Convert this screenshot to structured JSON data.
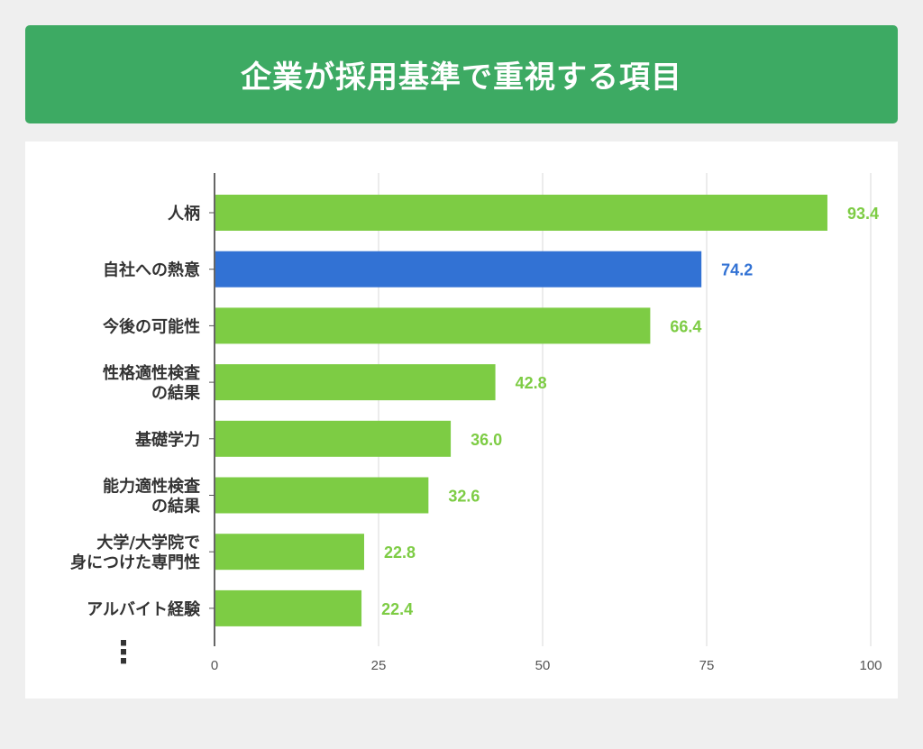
{
  "header": {
    "title": "企業が採用基準で重視する項目"
  },
  "colors": {
    "header_bg": "#3daa63",
    "bar_default": "#7dcc44",
    "bar_highlight": "#3272d4",
    "value_default": "#7dcc44",
    "value_highlight": "#3272d4"
  },
  "chart_data": {
    "type": "bar",
    "orientation": "horizontal",
    "title": "企業が採用基準で重視する項目",
    "categories": [
      [
        "人柄"
      ],
      [
        "自社への熱意"
      ],
      [
        "今後の可能性"
      ],
      [
        "性格適性検査",
        "の結果"
      ],
      [
        "基礎学力"
      ],
      [
        "能力適性検査",
        "の結果"
      ],
      [
        "大学/大学院で",
        "身につけた専門性"
      ],
      [
        "アルバイト経験"
      ]
    ],
    "values": [
      93.4,
      74.2,
      66.4,
      42.8,
      36.0,
      32.6,
      22.8,
      22.4
    ],
    "value_labels": [
      "93.4",
      "74.2",
      "66.4",
      "42.8",
      "36.0",
      "32.6",
      "22.8",
      "22.4"
    ],
    "highlight_index": 1,
    "xlim": [
      0,
      100
    ],
    "xticks": [
      0,
      25,
      50,
      75,
      100
    ],
    "grid": true,
    "continuation_marker": "⋮"
  }
}
